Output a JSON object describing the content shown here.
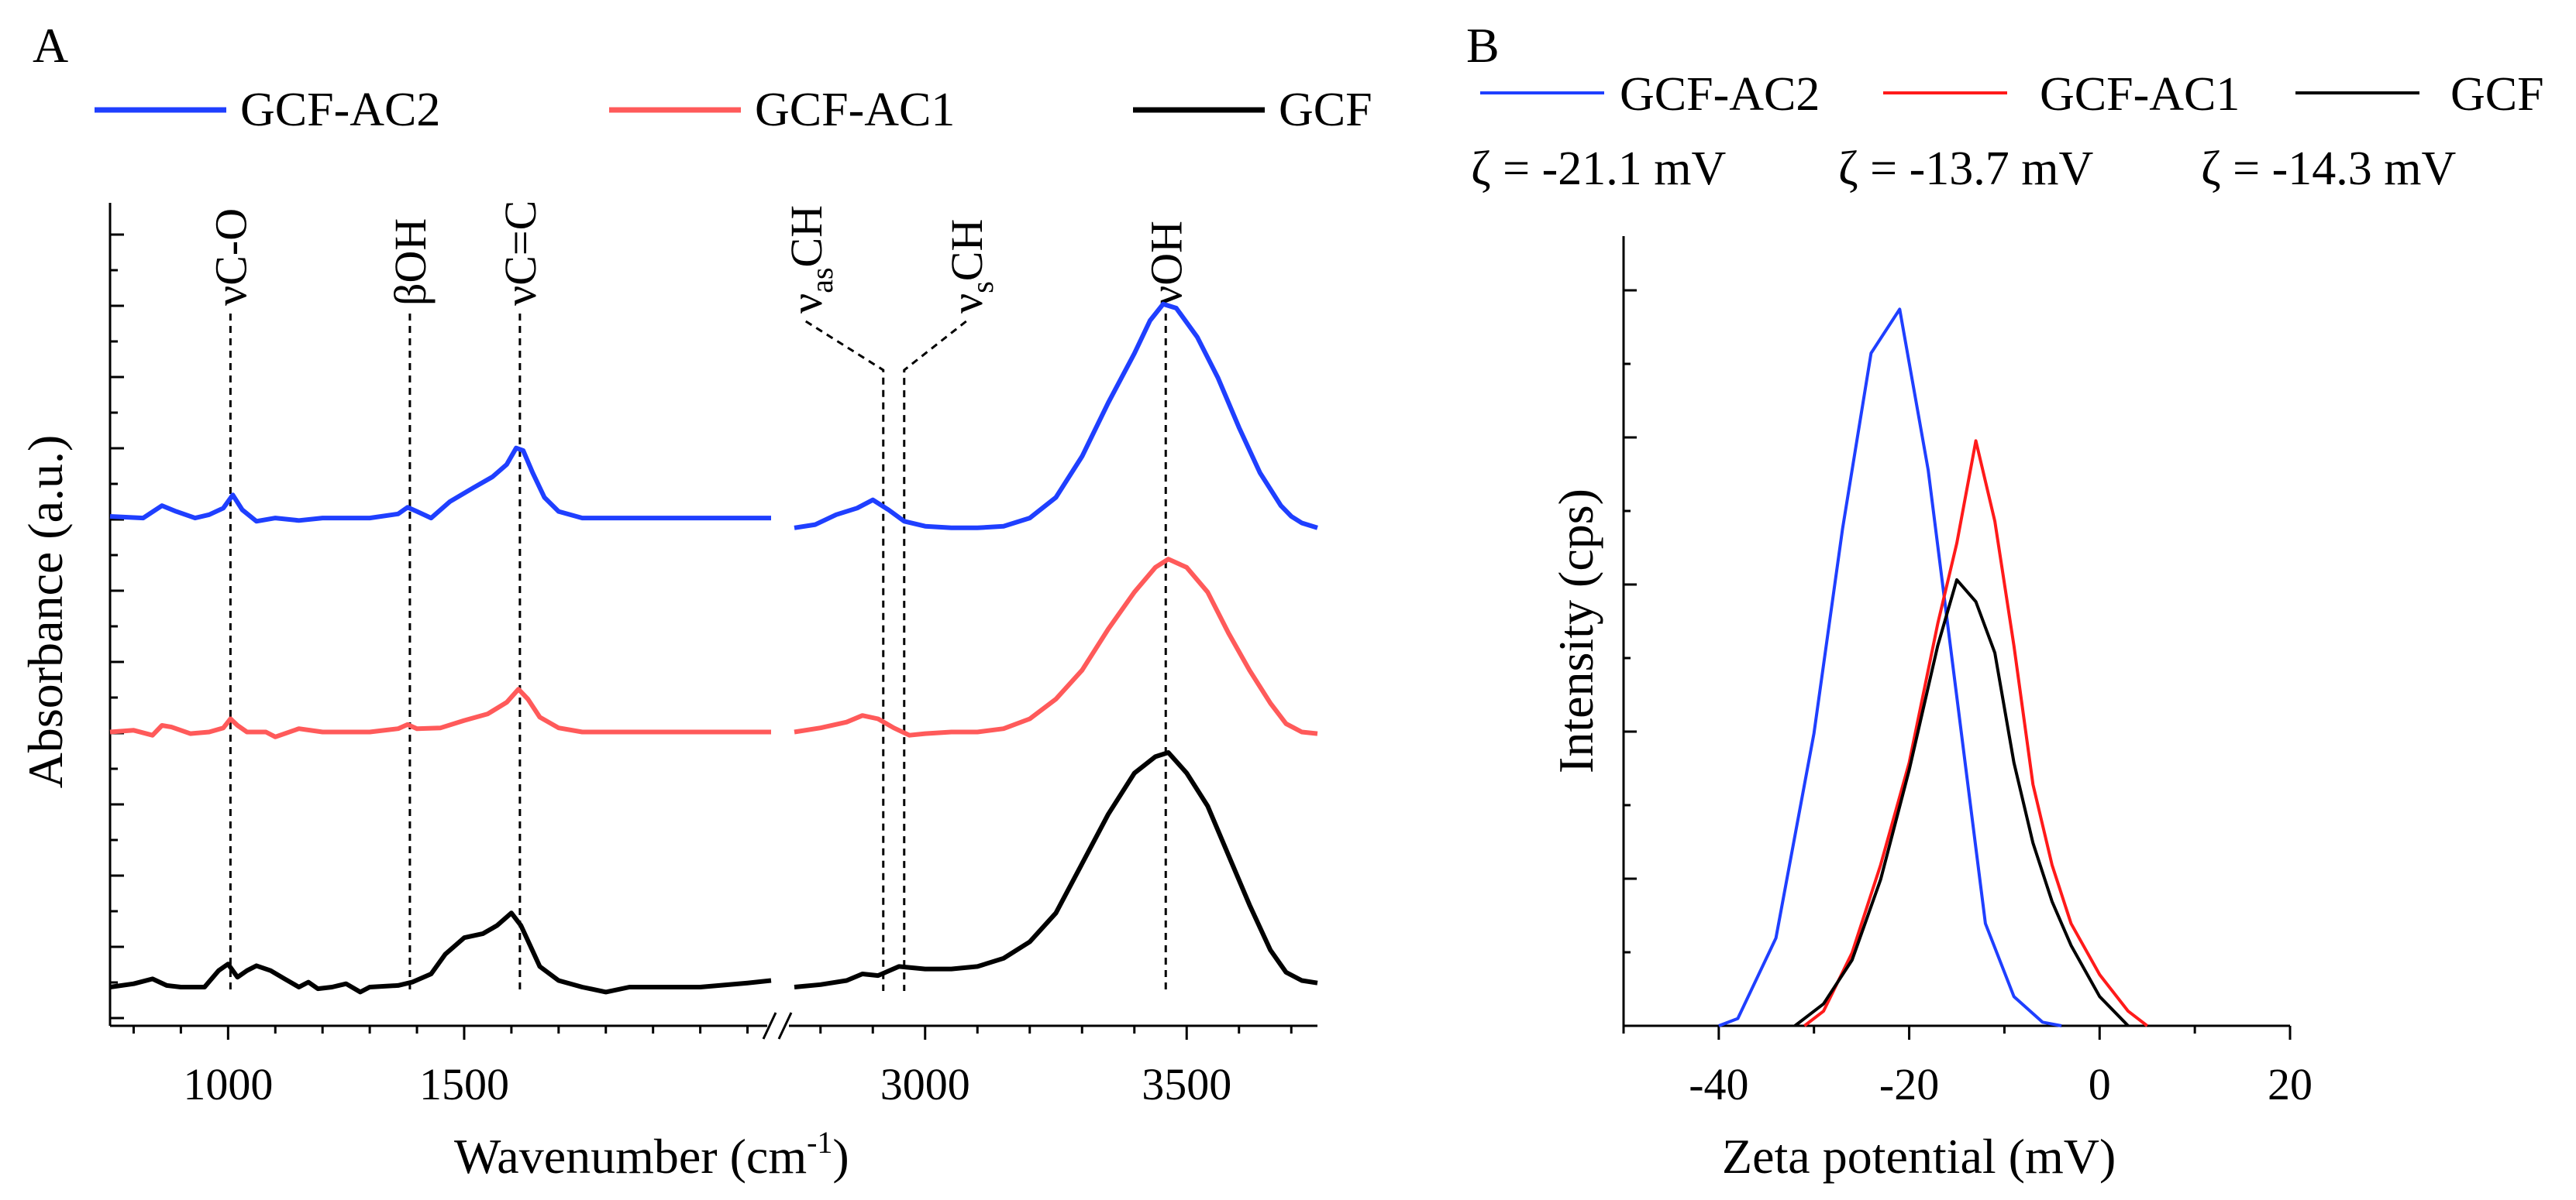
{
  "panels": {
    "a_label": "A",
    "b_label": "B"
  },
  "colors": {
    "blue": "#1f3fff",
    "red": "#ff5a5a",
    "red_b": "#ff1a1a",
    "black": "#000000"
  },
  "chart_data": [
    {
      "type": "line",
      "title": "",
      "xlabel": "Wavenumber (cm",
      "xlabel_sup": "-1",
      "xlabel_close": ")",
      "ylabel": "Absorbance (a.u.)",
      "axis_break": true,
      "x_segments": [
        [
          750,
          2150
        ],
        [
          2750,
          3750
        ]
      ],
      "xticks": [
        1000,
        1500,
        3000,
        3500
      ],
      "ytick_labels": false,
      "ylim": [
        0,
        1.0
      ],
      "legend": [
        "GCF-AC2",
        "GCF-AC1",
        "GCF"
      ],
      "series": [
        {
          "name": "GCF-AC2",
          "color_key": "blue",
          "offset": 0.57,
          "points": [
            [
              750,
              0.002
            ],
            [
              820,
              0.0
            ],
            [
              860,
              0.015
            ],
            [
              890,
              0.008
            ],
            [
              930,
              0.0
            ],
            [
              960,
              0.004
            ],
            [
              990,
              0.012
            ],
            [
              1010,
              0.028
            ],
            [
              1030,
              0.01
            ],
            [
              1060,
              -0.004
            ],
            [
              1100,
              0.0
            ],
            [
              1150,
              -0.003
            ],
            [
              1200,
              0.0
            ],
            [
              1300,
              0.0
            ],
            [
              1360,
              0.005
            ],
            [
              1380,
              0.013
            ],
            [
              1400,
              0.008
            ],
            [
              1430,
              0.0
            ],
            [
              1470,
              0.02
            ],
            [
              1520,
              0.037
            ],
            [
              1560,
              0.05
            ],
            [
              1590,
              0.065
            ],
            [
              1610,
              0.085
            ],
            [
              1625,
              0.082
            ],
            [
              1645,
              0.055
            ],
            [
              1670,
              0.025
            ],
            [
              1700,
              0.008
            ],
            [
              1750,
              0.0
            ],
            [
              1800,
              0.0
            ],
            [
              1900,
              0.0
            ],
            [
              2000,
              0.0
            ],
            [
              2100,
              0.0
            ],
            [
              2150,
              0.0
            ],
            [
              2750,
              -0.012
            ],
            [
              2790,
              -0.008
            ],
            [
              2830,
              0.004
            ],
            [
              2870,
              0.012
            ],
            [
              2900,
              0.022
            ],
            [
              2930,
              0.01
            ],
            [
              2960,
              -0.004
            ],
            [
              3000,
              -0.01
            ],
            [
              3050,
              -0.012
            ],
            [
              3100,
              -0.012
            ],
            [
              3150,
              -0.01
            ],
            [
              3200,
              0.0
            ],
            [
              3250,
              0.025
            ],
            [
              3300,
              0.075
            ],
            [
              3350,
              0.14
            ],
            [
              3400,
              0.2
            ],
            [
              3430,
              0.24
            ],
            [
              3455,
              0.26
            ],
            [
              3480,
              0.255
            ],
            [
              3520,
              0.22
            ],
            [
              3560,
              0.17
            ],
            [
              3600,
              0.11
            ],
            [
              3640,
              0.055
            ],
            [
              3680,
              0.015
            ],
            [
              3700,
              0.002
            ],
            [
              3720,
              -0.006
            ],
            [
              3750,
              -0.012
            ]
          ]
        },
        {
          "name": "GCF-AC1",
          "color_key": "red",
          "offset": 0.31,
          "points": [
            [
              750,
              0.0
            ],
            [
              800,
              0.002
            ],
            [
              840,
              -0.004
            ],
            [
              860,
              0.008
            ],
            [
              880,
              0.006
            ],
            [
              920,
              -0.002
            ],
            [
              960,
              0.0
            ],
            [
              990,
              0.005
            ],
            [
              1005,
              0.016
            ],
            [
              1020,
              0.008
            ],
            [
              1040,
              0.0
            ],
            [
              1080,
              0.0
            ],
            [
              1100,
              -0.006
            ],
            [
              1150,
              0.004
            ],
            [
              1200,
              0.0
            ],
            [
              1300,
              0.0
            ],
            [
              1360,
              0.004
            ],
            [
              1380,
              0.009
            ],
            [
              1400,
              0.004
            ],
            [
              1450,
              0.005
            ],
            [
              1500,
              0.014
            ],
            [
              1550,
              0.022
            ],
            [
              1590,
              0.036
            ],
            [
              1615,
              0.052
            ],
            [
              1635,
              0.04
            ],
            [
              1660,
              0.018
            ],
            [
              1700,
              0.005
            ],
            [
              1750,
              0.0
            ],
            [
              1800,
              0.0
            ],
            [
              1900,
              0.0
            ],
            [
              2000,
              0.0
            ],
            [
              2100,
              0.0
            ],
            [
              2150,
              0.0
            ],
            [
              2750,
              0.0
            ],
            [
              2800,
              0.005
            ],
            [
              2850,
              0.012
            ],
            [
              2880,
              0.02
            ],
            [
              2910,
              0.016
            ],
            [
              2940,
              0.005
            ],
            [
              2970,
              -0.004
            ],
            [
              3000,
              -0.002
            ],
            [
              3050,
              0.0
            ],
            [
              3100,
              0.0
            ],
            [
              3150,
              0.004
            ],
            [
              3200,
              0.016
            ],
            [
              3250,
              0.04
            ],
            [
              3300,
              0.075
            ],
            [
              3350,
              0.125
            ],
            [
              3400,
              0.17
            ],
            [
              3440,
              0.2
            ],
            [
              3465,
              0.21
            ],
            [
              3500,
              0.2
            ],
            [
              3540,
              0.17
            ],
            [
              3580,
              0.12
            ],
            [
              3620,
              0.075
            ],
            [
              3660,
              0.035
            ],
            [
              3690,
              0.01
            ],
            [
              3720,
              0.0
            ],
            [
              3750,
              -0.002
            ]
          ]
        },
        {
          "name": "GCF",
          "color_key": "black",
          "offset": 0.0,
          "points": [
            [
              750,
              0.0
            ],
            [
              800,
              0.004
            ],
            [
              840,
              0.01
            ],
            [
              870,
              0.002
            ],
            [
              900,
              0.0
            ],
            [
              950,
              0.0
            ],
            [
              980,
              0.02
            ],
            [
              1000,
              0.028
            ],
            [
              1020,
              0.012
            ],
            [
              1040,
              0.02
            ],
            [
              1060,
              0.026
            ],
            [
              1090,
              0.02
            ],
            [
              1120,
              0.01
            ],
            [
              1150,
              0.0
            ],
            [
              1170,
              0.006
            ],
            [
              1190,
              -0.002
            ],
            [
              1220,
              0.0
            ],
            [
              1250,
              0.004
            ],
            [
              1280,
              -0.006
            ],
            [
              1300,
              0.0
            ],
            [
              1360,
              0.002
            ],
            [
              1390,
              0.006
            ],
            [
              1430,
              0.016
            ],
            [
              1460,
              0.04
            ],
            [
              1500,
              0.06
            ],
            [
              1540,
              0.065
            ],
            [
              1570,
              0.075
            ],
            [
              1600,
              0.09
            ],
            [
              1620,
              0.075
            ],
            [
              1640,
              0.05
            ],
            [
              1660,
              0.025
            ],
            [
              1700,
              0.008
            ],
            [
              1750,
              0.0
            ],
            [
              1800,
              -0.006
            ],
            [
              1850,
              0.0
            ],
            [
              1900,
              0.0
            ],
            [
              2000,
              0.0
            ],
            [
              2100,
              0.005
            ],
            [
              2150,
              0.008
            ],
            [
              2750,
              0.0
            ],
            [
              2800,
              0.003
            ],
            [
              2850,
              0.008
            ],
            [
              2880,
              0.016
            ],
            [
              2910,
              0.014
            ],
            [
              2950,
              0.025
            ],
            [
              3000,
              0.022
            ],
            [
              3050,
              0.022
            ],
            [
              3100,
              0.025
            ],
            [
              3150,
              0.035
            ],
            [
              3200,
              0.055
            ],
            [
              3250,
              0.09
            ],
            [
              3300,
              0.15
            ],
            [
              3350,
              0.21
            ],
            [
              3400,
              0.26
            ],
            [
              3440,
              0.28
            ],
            [
              3465,
              0.285
            ],
            [
              3500,
              0.26
            ],
            [
              3540,
              0.22
            ],
            [
              3580,
              0.16
            ],
            [
              3620,
              0.1
            ],
            [
              3660,
              0.045
            ],
            [
              3690,
              0.018
            ],
            [
              3720,
              0.008
            ],
            [
              3750,
              0.005
            ]
          ]
        }
      ],
      "annotations": [
        {
          "text": "νC-O",
          "x": 1005
        },
        {
          "text": "βOH",
          "x": 1385
        },
        {
          "text": "νC=C",
          "x": 1618
        },
        {
          "text_base": "ν",
          "text_sub": "as",
          "text_end": "CH",
          "x": 2920
        },
        {
          "text_base": "ν",
          "text_sub": "s",
          "text_end": "CH",
          "x": 2960
        },
        {
          "text": "νOH",
          "x": 3460
        }
      ]
    },
    {
      "type": "line",
      "title": "",
      "xlabel": "Zeta potential (mV)",
      "ylabel": "Intensity (cps)",
      "xlim": [
        -50,
        20
      ],
      "xticks": [
        -40,
        -20,
        0,
        20
      ],
      "ylim": [
        0,
        1.08
      ],
      "ytick_labels": false,
      "legend": [
        "GCF-AC2",
        "GCF-AC1",
        "GCF"
      ],
      "zeta_labels": [
        "ζ = -21.1 mV",
        "ζ = -13.7 mV",
        "ζ = -14.3 mV"
      ],
      "series": [
        {
          "name": "GCF-AC2",
          "color_key": "blue",
          "zeta": -21.1,
          "x": [
            -40,
            -38,
            -34,
            -30,
            -27,
            -24,
            -21,
            -18,
            -15,
            -12,
            -9,
            -6,
            -4
          ],
          "y": [
            0,
            0.01,
            0.12,
            0.4,
            0.68,
            0.92,
            0.98,
            0.76,
            0.45,
            0.14,
            0.04,
            0.005,
            0
          ]
        },
        {
          "name": "GCF-AC1",
          "color_key": "red_b",
          "zeta": -13.7,
          "x": [
            -31,
            -29,
            -26,
            -23,
            -20,
            -17,
            -15,
            -13,
            -11,
            -9,
            -7,
            -5,
            -3,
            0,
            3,
            5
          ],
          "y": [
            0,
            0.02,
            0.1,
            0.22,
            0.36,
            0.55,
            0.66,
            0.8,
            0.69,
            0.52,
            0.33,
            0.22,
            0.14,
            0.07,
            0.02,
            0
          ]
        },
        {
          "name": "GCF",
          "color_key": "black",
          "zeta": -14.3,
          "x": [
            -32,
            -29,
            -26,
            -23,
            -20,
            -17,
            -15,
            -13,
            -11,
            -9,
            -7,
            -5,
            -3,
            0,
            3
          ],
          "y": [
            0,
            0.03,
            0.09,
            0.2,
            0.35,
            0.52,
            0.61,
            0.58,
            0.51,
            0.36,
            0.25,
            0.17,
            0.11,
            0.04,
            0
          ]
        }
      ]
    }
  ]
}
